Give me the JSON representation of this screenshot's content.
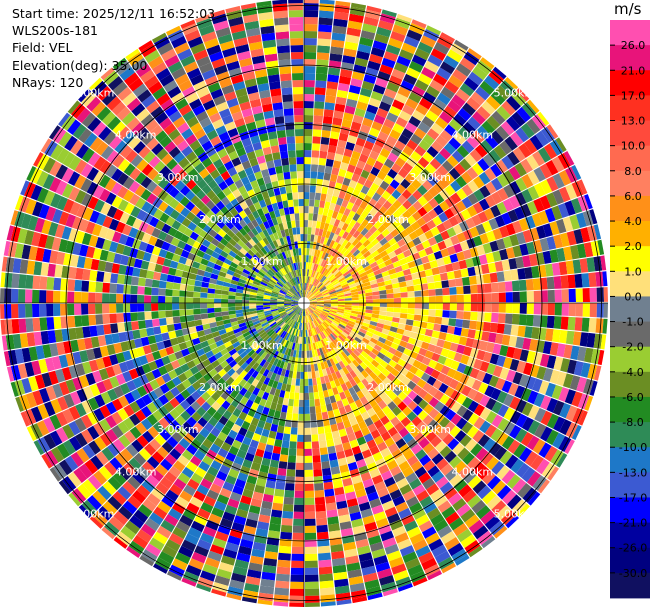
{
  "header": {
    "start_time": "Start time: 2025/12/11 16:52:03",
    "instrument": "WLS200s-181",
    "field": "Field: VEL",
    "elevation": "Elevation(deg): 35.00",
    "nrays": "NRays: 120"
  },
  "range_rings": [
    "1.00km",
    "2.00km",
    "3.00km",
    "4.00km",
    "5.00km"
  ],
  "colorbar": {
    "unit": "m/s",
    "ticks": [
      "26.0",
      "21.0",
      "17.0",
      "13.0",
      "10.0",
      "8.0",
      "6.0",
      "4.0",
      "2.0",
      "1.0",
      "0.0",
      "-1.0",
      "-2.0",
      "-4.0",
      "-6.0",
      "-8.0",
      "-10.0",
      "-13.0",
      "-17.0",
      "-21.0",
      "-26.0",
      "-30.0"
    ],
    "colors": [
      "#ff4fb0",
      "#e8147a",
      "#ff0000",
      "#ff3020",
      "#ff4a3c",
      "#ff6a50",
      "#ff8060",
      "#ff9018",
      "#ffb000",
      "#ffff00",
      "#ffe07a",
      "#708090",
      "#6a6a6a",
      "#9acd32",
      "#6b8e23",
      "#228b22",
      "#2e8b57",
      "#1e78c8",
      "#3c5ad2",
      "#0000ff",
      "#0000a0",
      "#000080",
      "#101060"
    ]
  }
}
